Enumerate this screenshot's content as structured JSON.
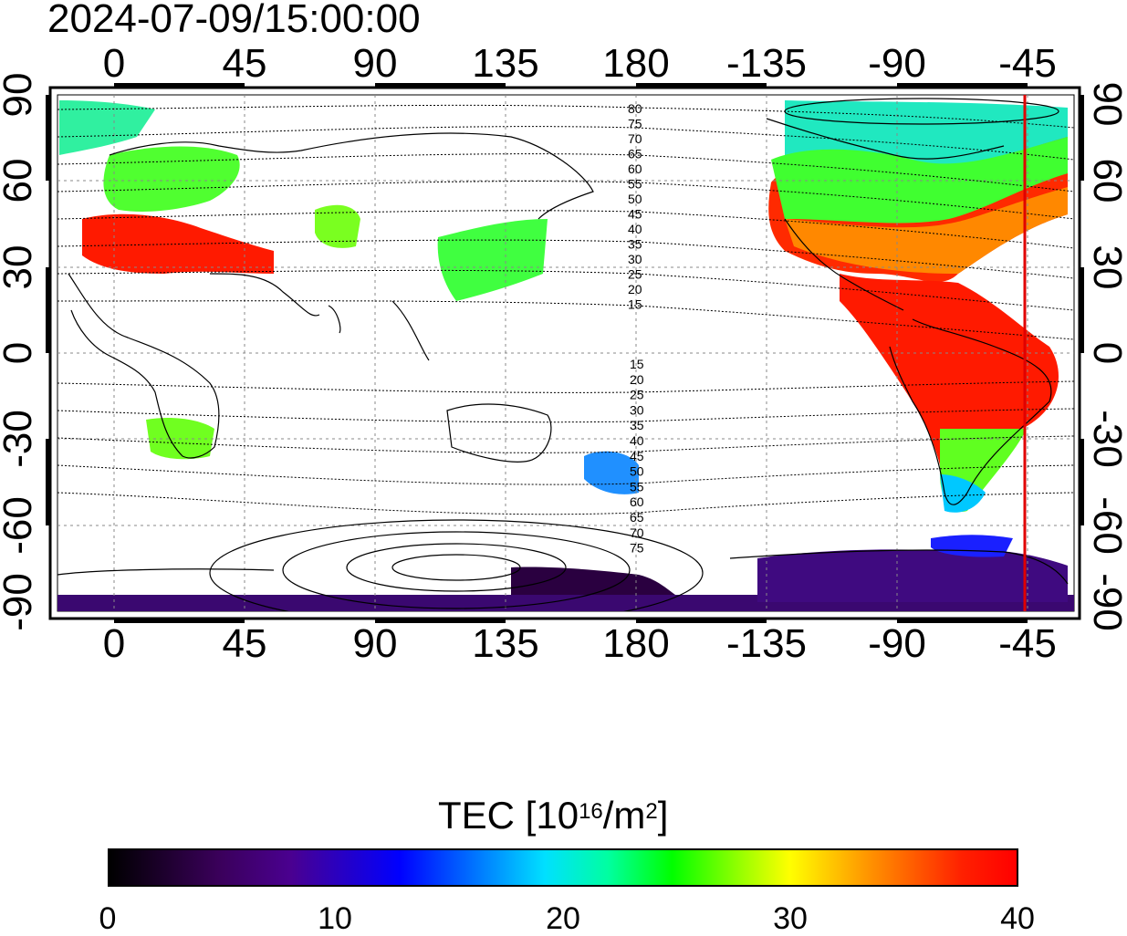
{
  "title": "2024-07-09/15:00:00",
  "longitude_ticks_top": [
    "0",
    "45",
    "90",
    "135",
    "180",
    "-135",
    "-90",
    "-45"
  ],
  "longitude_ticks_bottom": [
    "0",
    "45",
    "90",
    "135",
    "180",
    "-135",
    "-90",
    "-45"
  ],
  "latitude_ticks_left": [
    "90",
    "60",
    "30",
    "0",
    "-30",
    "-60",
    "-90"
  ],
  "latitude_ticks_right": [
    "90",
    "60",
    "30",
    "0",
    "-30",
    "-60",
    "-90"
  ],
  "contour_labels_north": [
    "80",
    "75",
    "70",
    "65",
    "60",
    "55",
    "50",
    "45",
    "40",
    "35",
    "30",
    "25",
    "20",
    "15"
  ],
  "contour_labels_south": [
    "15",
    "20",
    "25",
    "30",
    "35",
    "40",
    "45",
    "50",
    "55",
    "60",
    "65",
    "70",
    "75"
  ],
  "colorbar": {
    "title_prefix": "TEC  [10",
    "title_exp": "16",
    "title_mid": "/m",
    "title_exp2": "2",
    "title_suffix": "]",
    "ticks": [
      "0",
      "10",
      "20",
      "30",
      "40"
    ]
  },
  "colors": {
    "terminator_line": "#e00000",
    "high_tec": "#ff0000",
    "mid_tec": "#00ff40",
    "low_tec": "#3a006a"
  }
}
